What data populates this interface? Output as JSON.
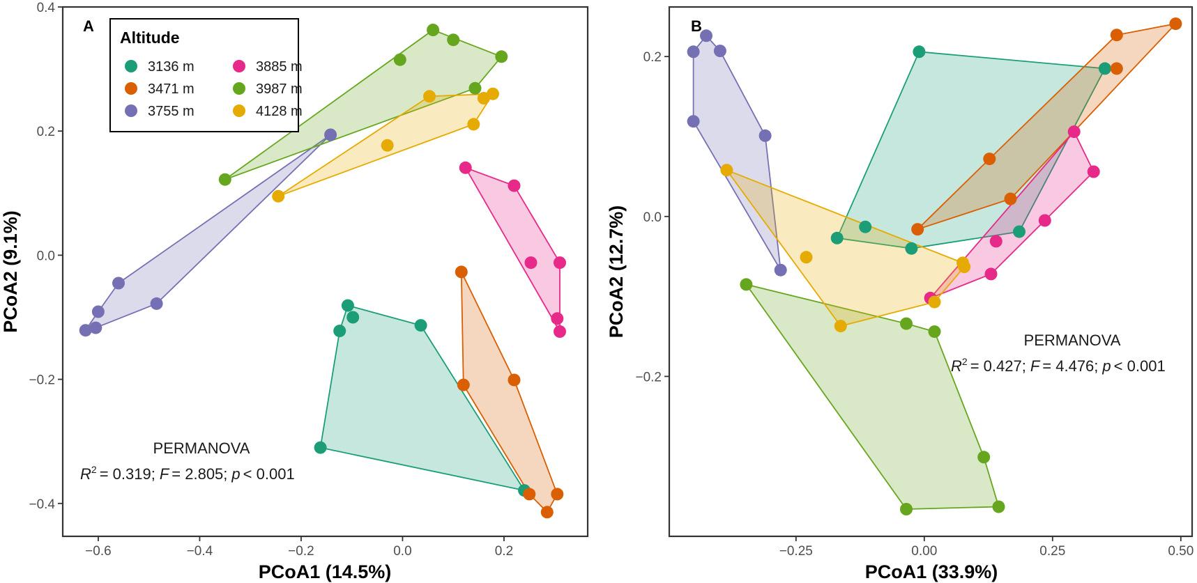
{
  "colors": {
    "3136 m": "#1b9e77",
    "3471 m": "#d95f02",
    "3755 m": "#7570b3",
    "3885 m": "#e7298a",
    "3987 m": "#66a61e",
    "4128 m": "#e6ab02"
  },
  "legend": {
    "title": "Altitude",
    "entries": [
      "3136 m",
      "3471 m",
      "3755 m",
      "3885 m",
      "3987 m",
      "4128 m"
    ]
  },
  "chart_data": [
    {
      "type": "scatter",
      "panel": "A",
      "xlabel": "PCoA1 (14.5%)",
      "ylabel": "PCoA2 (9.1%)",
      "xlim": [
        -0.67,
        0.365
      ],
      "ylim": [
        -0.453,
        0.4
      ],
      "xticks": [
        -0.6,
        -0.4,
        -0.2,
        0.0,
        0.2
      ],
      "xtick_labels": [
        "−0.6",
        "−0.4",
        "−0.2",
        "0.0",
        "0.2"
      ],
      "yticks": [
        -0.4,
        -0.2,
        0.0,
        0.2,
        0.4
      ],
      "ytick_labels": [
        "−0.4",
        "−0.2",
        "0.0",
        "0.2",
        "0.4"
      ],
      "hulls": true,
      "legend_position": "top-left",
      "annotation": {
        "title": "PERMANOVA",
        "r2": "= 0.319;",
        "F": "= 2.805;",
        "p": "< 0.001"
      },
      "series": [
        {
          "name": "3136 m",
          "points": [
            [
              -0.108,
              -0.081
            ],
            [
              -0.098,
              -0.1
            ],
            [
              -0.124,
              -0.122
            ],
            [
              0.036,
              -0.113
            ],
            [
              -0.162,
              -0.31
            ],
            [
              0.24,
              -0.379
            ]
          ]
        },
        {
          "name": "3471 m",
          "points": [
            [
              0.116,
              -0.027
            ],
            [
              0.12,
              -0.209
            ],
            [
              0.22,
              -0.201
            ],
            [
              0.25,
              -0.385
            ],
            [
              0.305,
              -0.385
            ],
            [
              0.285,
              -0.414
            ]
          ]
        },
        {
          "name": "3755 m",
          "points": [
            [
              -0.142,
              0.194
            ],
            [
              -0.56,
              -0.045
            ],
            [
              -0.485,
              -0.078
            ],
            [
              -0.6,
              -0.091
            ],
            [
              -0.605,
              -0.117
            ],
            [
              -0.625,
              -0.121
            ]
          ]
        },
        {
          "name": "3885 m",
          "points": [
            [
              0.124,
              0.141
            ],
            [
              0.22,
              0.112
            ],
            [
              0.31,
              -0.012
            ],
            [
              0.253,
              -0.012
            ],
            [
              0.305,
              -0.102
            ],
            [
              0.31,
              -0.123
            ]
          ]
        },
        {
          "name": "3987 m",
          "points": [
            [
              0.06,
              0.363
            ],
            [
              0.1,
              0.347
            ],
            [
              0.195,
              0.32
            ],
            [
              -0.005,
              0.315
            ],
            [
              0.143,
              0.269
            ],
            [
              -0.35,
              0.122
            ]
          ]
        },
        {
          "name": "4128 m",
          "points": [
            [
              0.053,
              0.256
            ],
            [
              0.16,
              0.253
            ],
            [
              0.178,
              0.26
            ],
            [
              0.14,
              0.211
            ],
            [
              -0.03,
              0.177
            ],
            [
              -0.245,
              0.095
            ]
          ]
        }
      ]
    },
    {
      "type": "scatter",
      "panel": "B",
      "xlabel": "PCoA1 (33.9%)",
      "ylabel": "PCoA2 (12.7%)",
      "xlim": [
        -0.497,
        0.522
      ],
      "ylim": [
        -0.4,
        0.262
      ],
      "xticks": [
        -0.25,
        0.0,
        0.25,
        0.5
      ],
      "xtick_labels": [
        "−0.25",
        "0.00",
        "0.25",
        "0.50"
      ],
      "yticks": [
        -0.2,
        0.0,
        0.2
      ],
      "ytick_labels": [
        "−0.2",
        "0.0",
        "0.2"
      ],
      "hulls": true,
      "annotation": {
        "title": "PERMANOVA",
        "r2": "= 0.427;",
        "F": "= 4.476;",
        "p": "< 0.001"
      },
      "series": [
        {
          "name": "3136 m",
          "points": [
            [
              -0.01,
              0.206
            ],
            [
              0.352,
              0.185
            ],
            [
              -0.17,
              -0.027
            ],
            [
              -0.115,
              -0.013
            ],
            [
              -0.025,
              -0.04
            ],
            [
              0.185,
              -0.019
            ]
          ]
        },
        {
          "name": "3471 m",
          "points": [
            [
              0.49,
              0.241
            ],
            [
              0.375,
              0.227
            ],
            [
              0.375,
              0.185
            ],
            [
              0.127,
              0.072
            ],
            [
              0.168,
              0.022
            ],
            [
              -0.013,
              -0.016
            ]
          ]
        },
        {
          "name": "3755 m",
          "points": [
            [
              -0.425,
              0.226
            ],
            [
              -0.45,
              0.206
            ],
            [
              -0.398,
              0.207
            ],
            [
              -0.45,
              0.119
            ],
            [
              -0.31,
              0.101
            ],
            [
              -0.28,
              -0.067
            ]
          ]
        },
        {
          "name": "3885 m",
          "points": [
            [
              0.292,
              0.106
            ],
            [
              0.33,
              0.056
            ],
            [
              0.235,
              -0.005
            ],
            [
              0.14,
              -0.031
            ],
            [
              0.13,
              -0.072
            ],
            [
              0.012,
              -0.102
            ]
          ]
        },
        {
          "name": "3987 m",
          "points": [
            [
              -0.347,
              -0.085
            ],
            [
              -0.035,
              -0.134
            ],
            [
              0.02,
              -0.144
            ],
            [
              0.116,
              -0.301
            ],
            [
              0.145,
              -0.363
            ],
            [
              -0.035,
              -0.366
            ]
          ]
        },
        {
          "name": "4128 m",
          "points": [
            [
              -0.385,
              0.058
            ],
            [
              -0.23,
              -0.051
            ],
            [
              0.075,
              -0.058
            ],
            [
              0.078,
              -0.063
            ],
            [
              0.02,
              -0.107
            ],
            [
              -0.163,
              -0.137
            ]
          ]
        }
      ]
    }
  ]
}
